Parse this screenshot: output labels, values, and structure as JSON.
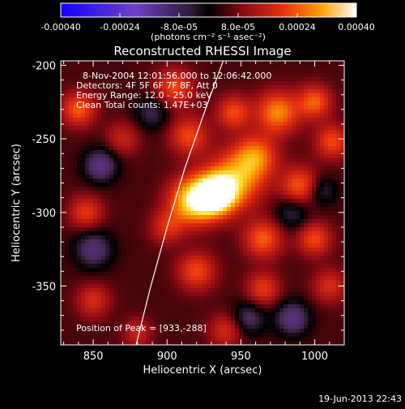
{
  "colorbar": {
    "ticks": [
      -0.0004,
      -0.00024,
      -8e-05,
      8e-05,
      0.00024,
      0.0004
    ],
    "tick_labels": [
      "-0.00040",
      "-0.00024",
      "-8.0e-05",
      "8.0e-05",
      "0.00024",
      "0.00040"
    ],
    "unit": "(photons cm⁻² s⁻¹ asec⁻²)",
    "range": [
      -0.0004,
      0.0004
    ]
  },
  "chart_data": {
    "type": "heatmap",
    "title": "Reconstructed RHESSI Image",
    "xlabel": "Heliocentric X (arcsec)",
    "ylabel": "Heliocentric Y (arcsec)",
    "xlim": [
      828,
      1020
    ],
    "ylim": [
      -390,
      -197
    ],
    "x_ticks": [
      850,
      900,
      950,
      1000
    ],
    "y_ticks": [
      -200,
      -250,
      -300,
      -350
    ],
    "annotations": [
      "8-Nov-2004 12:01:56.000 to 12:06:42.000",
      "Detectors: 4F 5F 6F 7F 8F, Att 0",
      "Energy Range: 12.0 - 25.0 keV",
      "Clean     Total counts: 1.47E+03"
    ],
    "peak_label": "Position of Peak = [933,-288]",
    "peak": {
      "x": 933,
      "y": -288,
      "value": 0.0004
    },
    "blobs": [
      {
        "x": 933,
        "y": -288,
        "value": 0.0004,
        "sigma": 9
      },
      {
        "x": 918,
        "y": -292,
        "value": 0.00032,
        "sigma": 11
      },
      {
        "x": 946,
        "y": -278,
        "value": 0.00024,
        "sigma": 13
      },
      {
        "x": 960,
        "y": -262,
        "value": 0.0002,
        "sigma": 10
      },
      {
        "x": 975,
        "y": -232,
        "value": 0.00022,
        "sigma": 10
      },
      {
        "x": 1000,
        "y": -225,
        "value": 0.00018,
        "sigma": 8
      },
      {
        "x": 1012,
        "y": -252,
        "value": 0.00016,
        "sigma": 8
      },
      {
        "x": 990,
        "y": -282,
        "value": 0.00018,
        "sigma": 9
      },
      {
        "x": 1000,
        "y": -318,
        "value": 0.00016,
        "sigma": 8
      },
      {
        "x": 965,
        "y": -318,
        "value": 0.00018,
        "sigma": 9
      },
      {
        "x": 965,
        "y": -352,
        "value": 0.00014,
        "sigma": 8
      },
      {
        "x": 920,
        "y": -340,
        "value": 0.00016,
        "sigma": 9
      },
      {
        "x": 900,
        "y": -310,
        "value": 0.00012,
        "sigma": 8
      },
      {
        "x": 915,
        "y": -248,
        "value": 0.00016,
        "sigma": 9
      },
      {
        "x": 905,
        "y": -215,
        "value": 0.00016,
        "sigma": 9
      },
      {
        "x": 945,
        "y": -232,
        "value": 0.00016,
        "sigma": 8
      },
      {
        "x": 840,
        "y": -230,
        "value": 0.00018,
        "sigma": 8
      },
      {
        "x": 870,
        "y": -250,
        "value": 0.0001,
        "sigma": 8
      },
      {
        "x": 845,
        "y": -300,
        "value": 0.00014,
        "sigma": 8
      },
      {
        "x": 850,
        "y": -360,
        "value": 0.00012,
        "sigma": 8
      },
      {
        "x": 880,
        "y": -382,
        "value": 0.0001,
        "sigma": 7
      },
      {
        "x": 940,
        "y": -380,
        "value": 0.00012,
        "sigma": 8
      },
      {
        "x": 1010,
        "y": -350,
        "value": 0.00012,
        "sigma": 8
      },
      {
        "x": 855,
        "y": -268,
        "value": -0.00016,
        "sigma": 8
      },
      {
        "x": 850,
        "y": -325,
        "value": -0.00014,
        "sigma": 9
      },
      {
        "x": 955,
        "y": -372,
        "value": -0.00012,
        "sigma": 8
      },
      {
        "x": 985,
        "y": -372,
        "value": -0.00016,
        "sigma": 8
      },
      {
        "x": 985,
        "y": -300,
        "value": -0.0001,
        "sigma": 8
      },
      {
        "x": 890,
        "y": -232,
        "value": -0.0001,
        "sigma": 8
      },
      {
        "x": 1005,
        "y": -285,
        "value": -0.0001,
        "sigma": 7
      }
    ],
    "limb_curve": [
      {
        "x": 938,
        "y": -197
      },
      {
        "x": 926,
        "y": -230
      },
      {
        "x": 912,
        "y": -270
      },
      {
        "x": 900,
        "y": -310
      },
      {
        "x": 889,
        "y": -350
      },
      {
        "x": 879,
        "y": -390
      }
    ],
    "colors": {
      "min": "#1200ff",
      "mid": "#000000",
      "max": "#ffffff"
    }
  },
  "footer": {
    "timestamp": "19-Jun-2013 22:43"
  }
}
